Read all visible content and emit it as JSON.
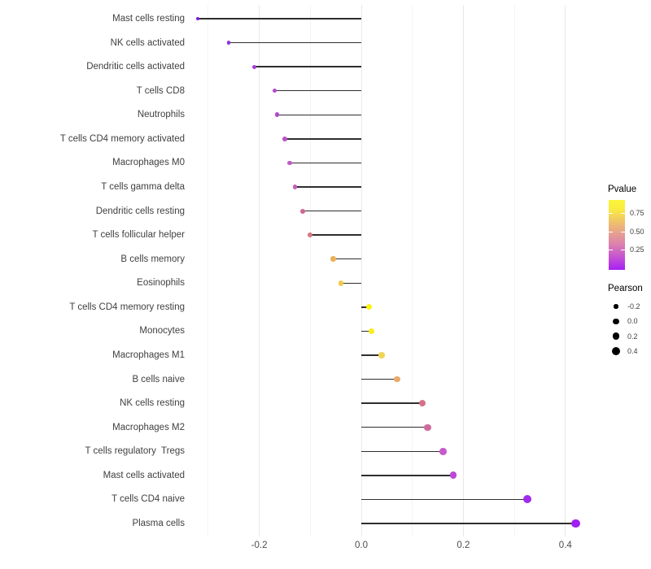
{
  "chart_data": {
    "type": "lollipop",
    "orientation": "horizontal",
    "title": "",
    "xlabel": "",
    "ylabel": "",
    "grid": true,
    "stem_color": "#2e2e2e",
    "x_axis": {
      "tick_labels": [
        "-0.2",
        "0.0",
        "0.2",
        "0.4"
      ],
      "tick_values": [
        -0.2,
        0.0,
        0.2,
        0.4
      ],
      "minor_gridlines": [
        -0.3,
        -0.1,
        0.1,
        0.3
      ],
      "range": [
        -0.34,
        0.45
      ]
    },
    "points": [
      {
        "label": "Mast cells resting",
        "pearson": -0.32,
        "pvalue": 0.02,
        "color": "#7e1de0"
      },
      {
        "label": "NK cells activated",
        "pearson": -0.26,
        "pvalue": 0.08,
        "color": "#9330e4"
      },
      {
        "label": "Dendritic cells activated",
        "pearson": -0.21,
        "pvalue": 0.16,
        "color": "#a83bd8"
      },
      {
        "label": "T cells CD8",
        "pearson": -0.17,
        "pvalue": 0.26,
        "color": "#b44acc"
      },
      {
        "label": "Neutrophils",
        "pearson": -0.165,
        "pvalue": 0.26,
        "color": "#b44acc"
      },
      {
        "label": "T cells CD4 memory activated",
        "pearson": -0.15,
        "pvalue": 0.31,
        "color": "#bc51c8"
      },
      {
        "label": "Macrophages M0",
        "pearson": -0.14,
        "pvalue": 0.34,
        "color": "#c058c4"
      },
      {
        "label": "T cells gamma delta",
        "pearson": -0.13,
        "pvalue": 0.37,
        "color": "#c65fbe"
      },
      {
        "label": "Dendritic cells resting",
        "pearson": -0.115,
        "pvalue": 0.46,
        "color": "#cf6693"
      },
      {
        "label": "T cells follicular helper",
        "pearson": -0.1,
        "pvalue": 0.51,
        "color": "#d77683"
      },
      {
        "label": "B cells memory",
        "pearson": -0.055,
        "pvalue": 0.68,
        "color": "#ebaf55"
      },
      {
        "label": "Eosinophils",
        "pearson": -0.04,
        "pvalue": 0.75,
        "color": "#f0cc48"
      },
      {
        "label": "T cells CD4 memory resting",
        "pearson": 0.015,
        "pvalue": 0.92,
        "color": "#faf311"
      },
      {
        "label": "Monocytes",
        "pearson": 0.02,
        "pvalue": 0.9,
        "color": "#f8ee22"
      },
      {
        "label": "Macrophages M1",
        "pearson": 0.04,
        "pvalue": 0.73,
        "color": "#f1d355"
      },
      {
        "label": "B cells naive",
        "pearson": 0.07,
        "pvalue": 0.65,
        "color": "#e9a968"
      },
      {
        "label": "NK cells resting",
        "pearson": 0.12,
        "pvalue": 0.49,
        "color": "#d4728a"
      },
      {
        "label": "Macrophages M2",
        "pearson": 0.13,
        "pvalue": 0.46,
        "color": "#cf6b9b"
      },
      {
        "label": "T cells regulatory  Tregs",
        "pearson": 0.16,
        "pvalue": 0.33,
        "color": "#c75bcb"
      },
      {
        "label": "Mast cells activated",
        "pearson": 0.18,
        "pvalue": 0.28,
        "color": "#bc48d8"
      },
      {
        "label": "T cells CD4 naive",
        "pearson": 0.325,
        "pvalue": 0.04,
        "color": "#a02bee"
      },
      {
        "label": "Plasma cells",
        "pearson": 0.42,
        "pvalue": 0.03,
        "color": "#a21ff2"
      }
    ],
    "legends": {
      "pvalue": {
        "title": "Pvalue",
        "tick_labels": [
          "0.75",
          "0.50",
          "0.25"
        ],
        "tick_values": [
          0.75,
          0.5,
          0.25
        ],
        "bar_domain": [
          -0.03,
          0.93
        ],
        "gradient_bottom_to_top": [
          "#a620f2",
          "#bc43de",
          "#cd64c4",
          "#dc83ac",
          "#e59b94",
          "#ecb578",
          "#f3d05c",
          "#f9ec3e",
          "#fbf53a"
        ]
      },
      "pearson": {
        "title": "Pearson",
        "dot_color": "#000000",
        "items": [
          {
            "label": "-0.2",
            "value": -0.2
          },
          {
            "label": "0.0",
            "value": 0.0
          },
          {
            "label": "0.2",
            "value": 0.2
          },
          {
            "label": "0.4",
            "value": 0.4
          }
        ]
      }
    }
  }
}
